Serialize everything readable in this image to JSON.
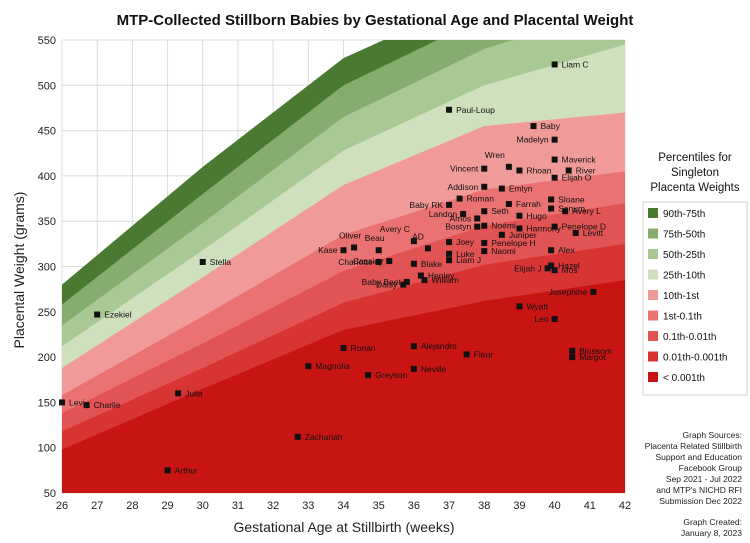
{
  "chart_data": {
    "type": "scatter",
    "title": "MTP-Collected Stillborn Babies by Gestational Age and Placental Weight",
    "xlabel": "Gestational Age at Stillbirth (weeks)",
    "ylabel": "Placental Weight (grams)",
    "xlim": [
      26,
      42
    ],
    "ylim": [
      50,
      550
    ],
    "xticks": [
      "26",
      "27",
      "28",
      "29",
      "30",
      "31",
      "32",
      "33",
      "34",
      "35",
      "36",
      "37",
      "38",
      "39",
      "40",
      "41",
      "42"
    ],
    "yticks": [
      "50",
      "100",
      "150",
      "200",
      "250",
      "300",
      "350",
      "400",
      "450",
      "500",
      "550"
    ],
    "grid": true,
    "legend": {
      "title": [
        "Percentiles for",
        "Singleton",
        "Placenta Weights"
      ],
      "position": "right",
      "entries": [
        {
          "name": "90th-75th",
          "color": "#4a7a32"
        },
        {
          "name": "75th-50th",
          "color": "#86ad6e"
        },
        {
          "name": "50th-25th",
          "color": "#aac894"
        },
        {
          "name": "25th-10th",
          "color": "#cfe0bf"
        },
        {
          "name": "10th-1st",
          "color": "#f19a9a"
        },
        {
          "name": "1st-0.1th",
          "color": "#ea7272"
        },
        {
          "name": "0.1th-0.01th",
          "color": "#e25353"
        },
        {
          "name": "0.01th-0.001th",
          "color": "#d93434"
        },
        {
          "name": "< 0.001th",
          "color": "#c91414"
        }
      ]
    },
    "bands": {
      "x": [
        26,
        30,
        34,
        38,
        42
      ],
      "upper": [
        [
          280,
          410,
          530,
          600,
          660
        ],
        [
          258,
          380,
          500,
          575,
          630
        ],
        [
          235,
          348,
          465,
          540,
          590
        ],
        [
          212,
          318,
          428,
          500,
          545
        ],
        [
          188,
          288,
          390,
          455,
          470
        ],
        [
          158,
          245,
          335,
          385,
          405
        ],
        [
          138,
          215,
          295,
          345,
          370
        ],
        [
          118,
          188,
          260,
          302,
          325
        ],
        [
          98,
          165,
          230,
          262,
          285
        ]
      ]
    },
    "points": [
      {
        "label": "Levi",
        "x": 26.0,
        "y": 150
      },
      {
        "label": "Charlie",
        "x": 26.7,
        "y": 147
      },
      {
        "label": "Ezekiel",
        "x": 27.0,
        "y": 247
      },
      {
        "label": "Arthur",
        "x": 29.0,
        "y": 75
      },
      {
        "label": "Julia",
        "x": 29.3,
        "y": 160
      },
      {
        "label": "Stella",
        "x": 30.0,
        "y": 305
      },
      {
        "label": "Zachariah",
        "x": 32.7,
        "y": 112
      },
      {
        "label": "Magnolia",
        "x": 33.0,
        "y": 190
      },
      {
        "label": "Ronan",
        "x": 34.0,
        "y": 210
      },
      {
        "label": "Kase",
        "x": 34.0,
        "y": 318
      },
      {
        "label": "Oliver",
        "x": 34.3,
        "y": 321
      },
      {
        "label": "Greyson",
        "x": 34.7,
        "y": 180
      },
      {
        "label": "Beau",
        "x": 35.0,
        "y": 318
      },
      {
        "label": "Charlotte",
        "x": 35.0,
        "y": 305
      },
      {
        "label": "Daisy",
        "x": 35.7,
        "y": 280
      },
      {
        "label": "Baby Beet",
        "x": 35.8,
        "y": 283
      },
      {
        "label": "Cassidy",
        "x": 35.3,
        "y": 306
      },
      {
        "label": "Avery C",
        "x": 36.0,
        "y": 328
      },
      {
        "label": "Blake",
        "x": 36.0,
        "y": 303
      },
      {
        "label": "Alejandro",
        "x": 36.0,
        "y": 212
      },
      {
        "label": "Neville",
        "x": 36.0,
        "y": 187
      },
      {
        "label": "AD",
        "x": 36.4,
        "y": 320
      },
      {
        "label": "Henley",
        "x": 36.2,
        "y": 290
      },
      {
        "label": "William",
        "x": 36.3,
        "y": 285
      },
      {
        "label": "Baby RK",
        "x": 37.0,
        "y": 368
      },
      {
        "label": "Paul-Loup",
        "x": 37.0,
        "y": 473
      },
      {
        "label": "Joey",
        "x": 37.0,
        "y": 327
      },
      {
        "label": "Luke",
        "x": 37.0,
        "y": 314
      },
      {
        "label": "Liam J",
        "x": 37.0,
        "y": 307
      },
      {
        "label": "Fleur",
        "x": 37.5,
        "y": 203
      },
      {
        "label": "Roman",
        "x": 37.3,
        "y": 375
      },
      {
        "label": "Landon",
        "x": 37.4,
        "y": 358
      },
      {
        "label": "Amos",
        "x": 37.8,
        "y": 353
      },
      {
        "label": "Bostyn",
        "x": 37.8,
        "y": 344
      },
      {
        "label": "Vincent",
        "x": 38.0,
        "y": 408
      },
      {
        "label": "Addison",
        "x": 38.0,
        "y": 388
      },
      {
        "label": "Seth",
        "x": 38.0,
        "y": 361
      },
      {
        "label": "Noémi",
        "x": 38.0,
        "y": 345
      },
      {
        "label": "Penelope H",
        "x": 38.0,
        "y": 326
      },
      {
        "label": "Naomi",
        "x": 38.0,
        "y": 317
      },
      {
        "label": "Emlyn",
        "x": 38.5,
        "y": 386
      },
      {
        "label": "Wren",
        "x": 38.7,
        "y": 410
      },
      {
        "label": "Farrah",
        "x": 38.7,
        "y": 369
      },
      {
        "label": "Juniper",
        "x": 38.5,
        "y": 335
      },
      {
        "label": "Rhoan",
        "x": 39.0,
        "y": 406
      },
      {
        "label": "Hugo",
        "x": 39.0,
        "y": 356
      },
      {
        "label": "Harmony",
        "x": 39.0,
        "y": 342
      },
      {
        "label": "Wyatt",
        "x": 39.0,
        "y": 256
      },
      {
        "label": "Baby",
        "x": 39.4,
        "y": 455
      },
      {
        "label": "Madelyn",
        "x": 40.0,
        "y": 440
      },
      {
        "label": "Maverick",
        "x": 40.0,
        "y": 418
      },
      {
        "label": "Elijah O",
        "x": 40.0,
        "y": 398
      },
      {
        "label": "Sloane",
        "x": 39.9,
        "y": 374
      },
      {
        "label": "Sonum",
        "x": 39.9,
        "y": 364
      },
      {
        "label": "Penelope D",
        "x": 40.0,
        "y": 344
      },
      {
        "label": "Alex",
        "x": 39.9,
        "y": 318
      },
      {
        "label": "Hazel",
        "x": 39.9,
        "y": 301
      },
      {
        "label": "Elijah J",
        "x": 39.8,
        "y": 298
      },
      {
        "label": "Mos",
        "x": 40.0,
        "y": 296
      },
      {
        "label": "Leo",
        "x": 40.0,
        "y": 242
      },
      {
        "label": "Liam C",
        "x": 40.0,
        "y": 523
      },
      {
        "label": "River",
        "x": 40.4,
        "y": 406
      },
      {
        "label": "Avery L",
        "x": 40.3,
        "y": 361
      },
      {
        "label": "Levitt",
        "x": 40.6,
        "y": 337
      },
      {
        "label": "Josephine",
        "x": 41.1,
        "y": 272
      },
      {
        "label": "Blossom",
        "x": 40.5,
        "y": 207
      },
      {
        "label": "Margot",
        "x": 40.5,
        "y": 200
      }
    ]
  },
  "sources": [
    "Graph Sources:",
    "Placenta Related Stillbirth",
    "Support and Education",
    "Facebook Group",
    "Sep 2021 - Jul 2022",
    "and MTP's NICHD RFI",
    "Submission Dec 2022"
  ],
  "created": [
    "Graph Created:",
    "January 8, 2023"
  ]
}
